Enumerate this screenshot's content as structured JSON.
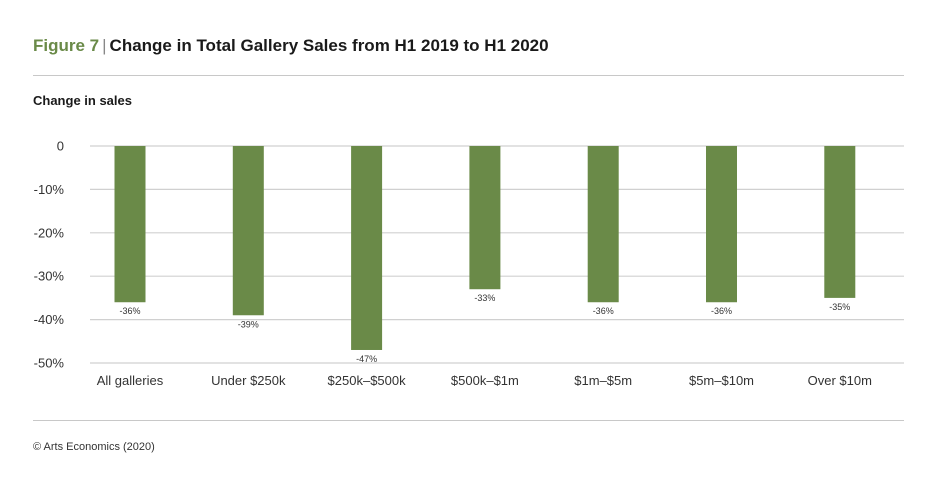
{
  "header": {
    "figure_label": "Figure 7",
    "separator": "|",
    "title": "Change in Total Gallery Sales from H1 2019 to H1 2020",
    "subtitle": "Change in sales"
  },
  "footer": {
    "source": "© Arts Economics (2020)"
  },
  "colors": {
    "bar": "#6a8a48",
    "accent": "#6a8a48",
    "grid": "#d0d0d0"
  },
  "chart_data": {
    "type": "bar",
    "title": "Change in Total Gallery Sales from H1 2019 to H1 2020",
    "ylabel": "Change in sales",
    "xlabel": "",
    "categories": [
      "All galleries",
      "Under $250k",
      "$250k–$500k",
      "$500k–$1m",
      "$1m–$5m",
      "$5m–$10m",
      "Over $10m"
    ],
    "values": [
      -36,
      -39,
      -47,
      -33,
      -36,
      -36,
      -35
    ],
    "data_labels": [
      "-36%",
      "-39%",
      "-47%",
      "-33%",
      "-36%",
      "-36%",
      "-35%"
    ],
    "ylim": [
      -50,
      0
    ],
    "yticks": [
      0,
      -10,
      -20,
      -30,
      -40,
      -50
    ],
    "ytick_labels": [
      "0",
      "-10%",
      "-20%",
      "-30%",
      "-40%",
      "-50%"
    ],
    "grid": true,
    "legend": "none"
  }
}
